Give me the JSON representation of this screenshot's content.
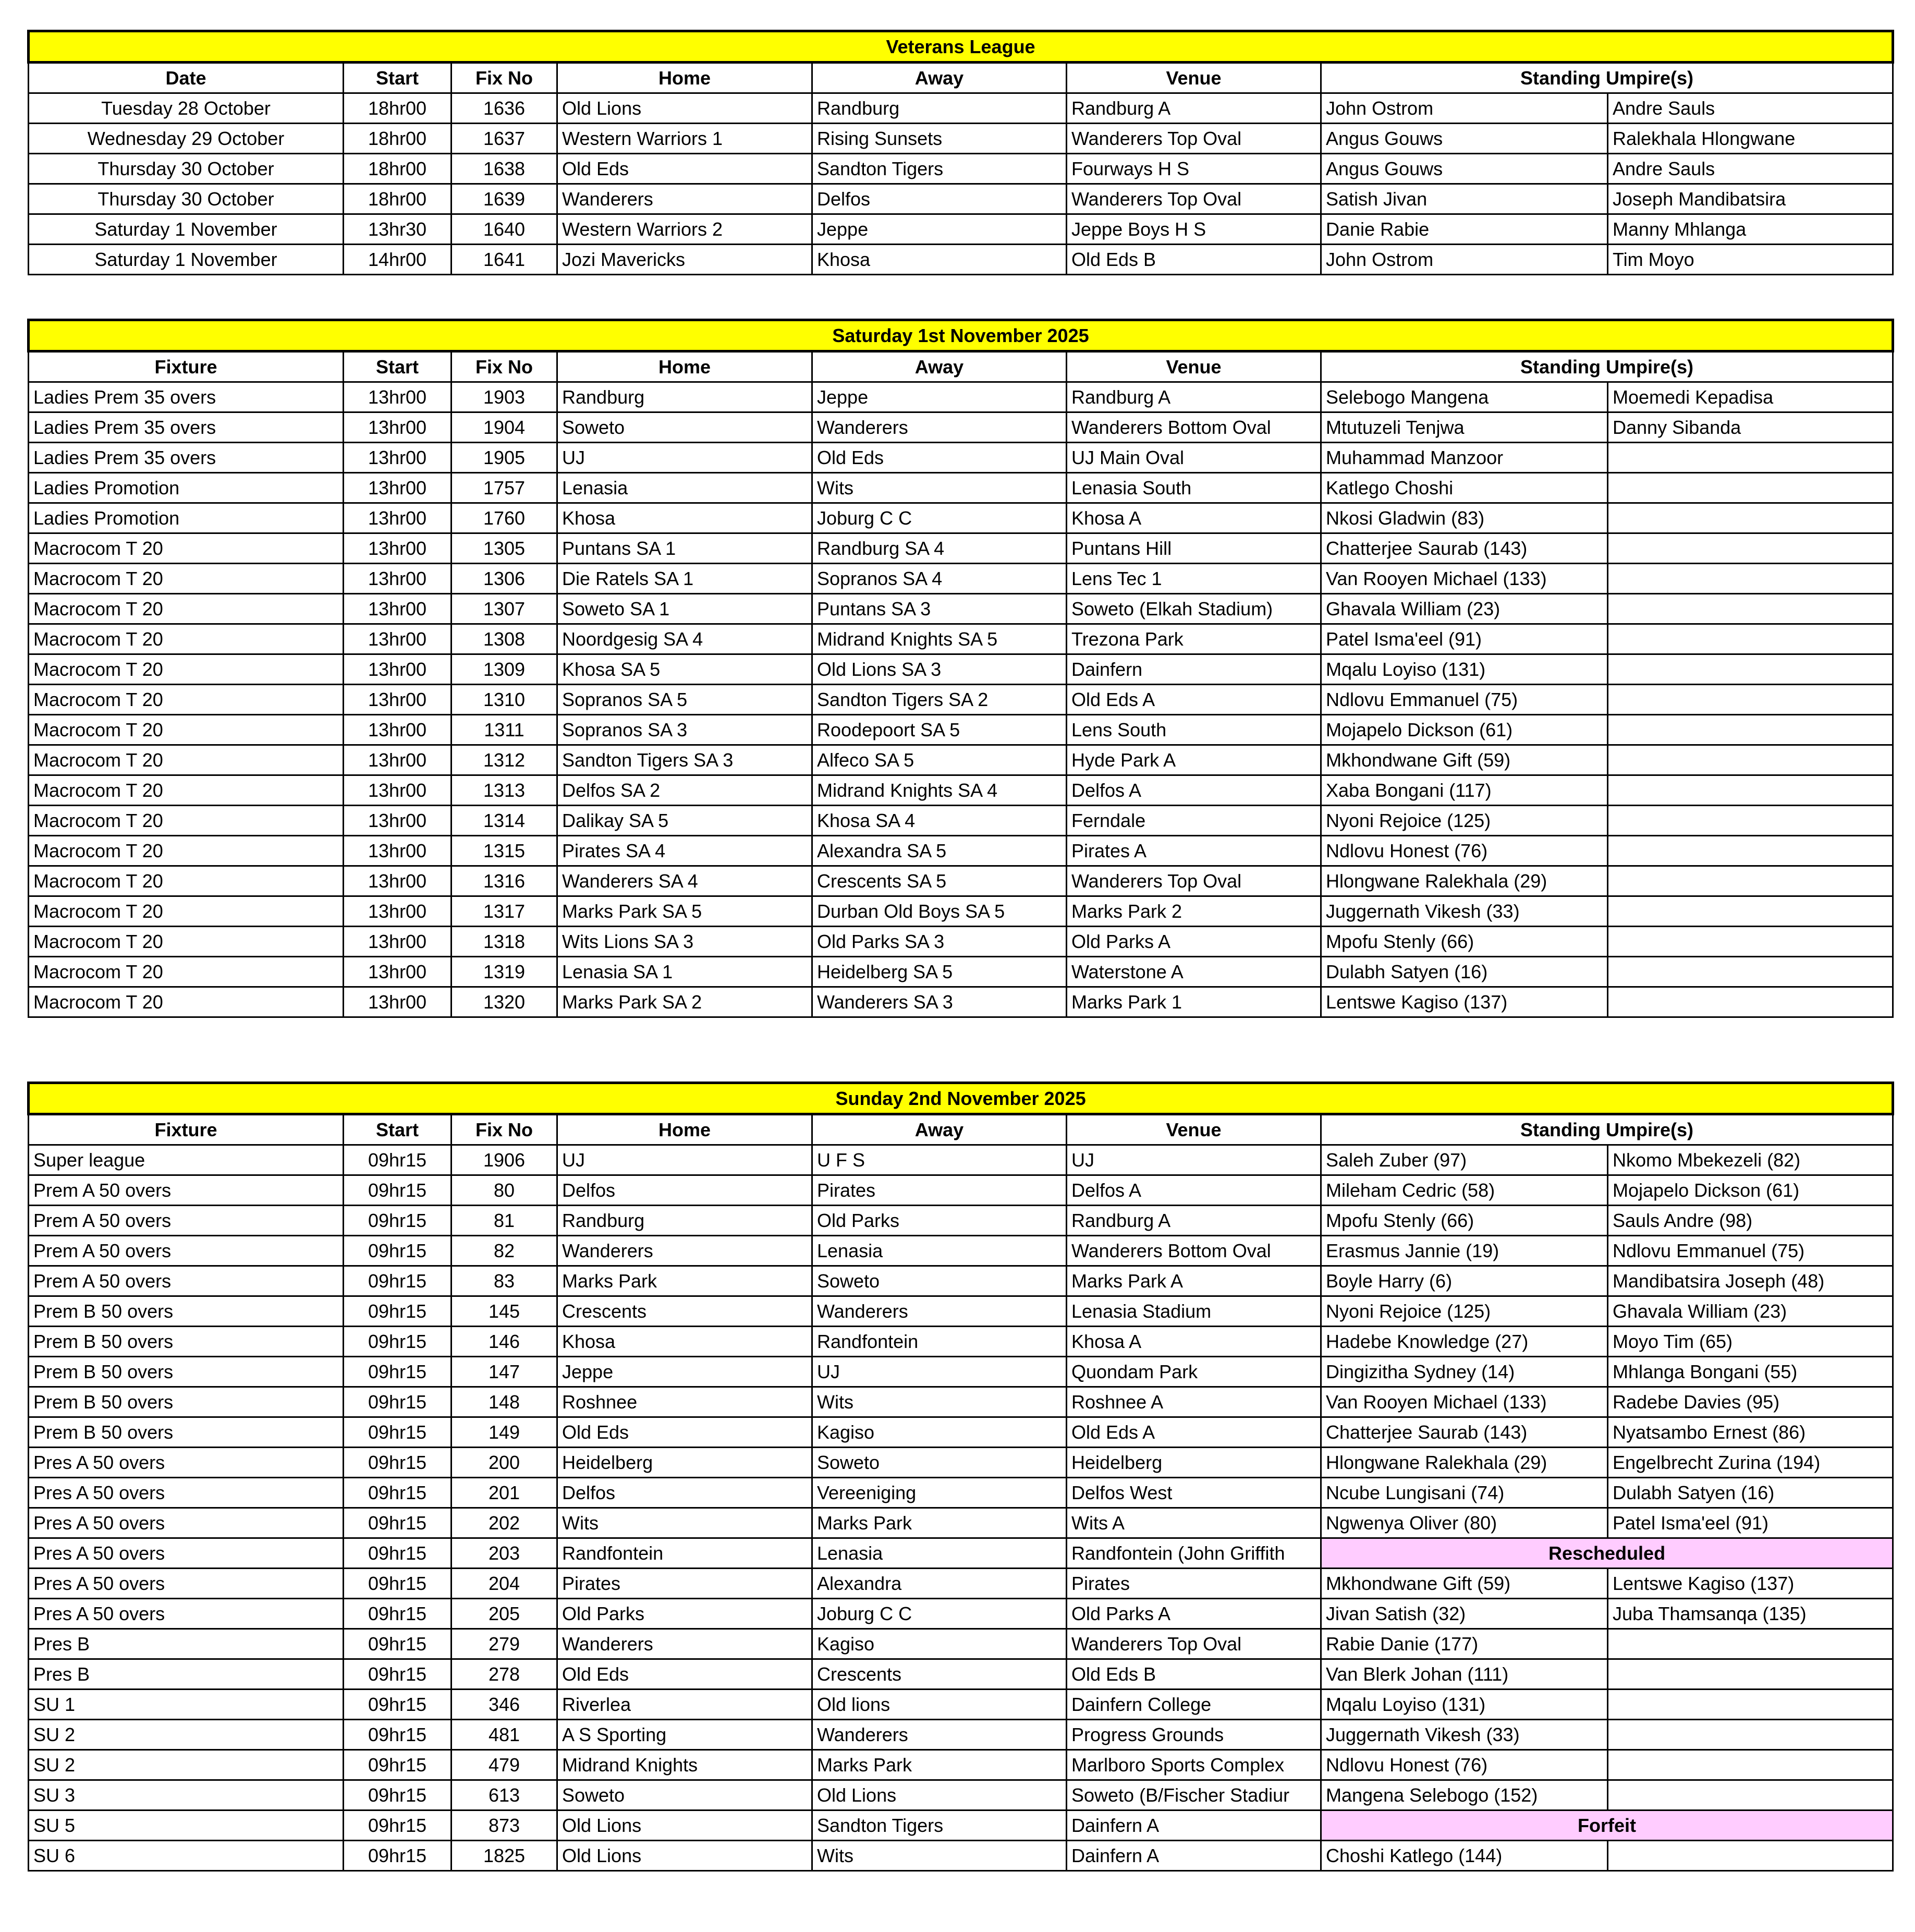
{
  "colors": {
    "title_bg": "#ffff00",
    "notice_bg": "#ffccff"
  },
  "sections": [
    {
      "title": "Veterans League",
      "headers": [
        "Date",
        "Start",
        "Fix No",
        "Home",
        "Away",
        "Venue",
        "Standing Umpire(s)"
      ],
      "rows": [
        {
          "cells": [
            "Tuesday 28 October",
            "18hr00",
            "1636",
            "Old Lions",
            "Randburg",
            "Randburg A",
            "John Ostrom",
            "Andre Sauls"
          ]
        },
        {
          "cells": [
            "Wednesday 29 October",
            "18hr00",
            "1637",
            "Western Warriors 1",
            "Rising Sunsets",
            "Wanderers Top Oval",
            "Angus Gouws",
            "Ralekhala Hlongwane"
          ]
        },
        {
          "cells": [
            "Thursday 30 October",
            "18hr00",
            "1638",
            "Old Eds",
            "Sandton Tigers",
            "Fourways H S",
            "Angus Gouws",
            "Andre Sauls"
          ]
        },
        {
          "cells": [
            "Thursday 30 October",
            "18hr00",
            "1639",
            "Wanderers",
            "Delfos",
            "Wanderers Top Oval",
            "Satish Jivan",
            "Joseph Mandibatsira"
          ]
        },
        {
          "cells": [
            "Saturday 1 November",
            "13hr30",
            "1640",
            "Western Warriors 2",
            "Jeppe",
            "Jeppe Boys H S",
            "Danie Rabie",
            "Manny Mhlanga"
          ]
        },
        {
          "cells": [
            "Saturday 1 November",
            "14hr00",
            "1641",
            "Jozi Mavericks",
            "Khosa",
            "Old Eds B",
            "John Ostrom",
            "Tim Moyo"
          ]
        }
      ]
    },
    {
      "title": "Saturday 1st November 2025",
      "headers": [
        "Fixture",
        "Start",
        "Fix No",
        "Home",
        "Away",
        "Venue",
        "Standing Umpire(s)"
      ],
      "rows": [
        {
          "cells": [
            "Ladies Prem 35 overs",
            "13hr00",
            "1903",
            "Randburg",
            "Jeppe",
            "Randburg A",
            "Selebogo Mangena",
            "Moemedi Kepadisa"
          ]
        },
        {
          "cells": [
            "Ladies Prem 35 overs",
            "13hr00",
            "1904",
            "Soweto",
            "Wanderers",
            "Wanderers Bottom Oval",
            "Mtutuzeli Tenjwa",
            "Danny Sibanda"
          ]
        },
        {
          "cells": [
            "Ladies Prem 35 overs",
            "13hr00",
            "1905",
            "UJ",
            "Old Eds",
            "UJ Main Oval",
            "Muhammad Manzoor",
            ""
          ]
        },
        {
          "cells": [
            "Ladies Promotion",
            "13hr00",
            "1757",
            "Lenasia",
            "Wits",
            "Lenasia South",
            "Katlego Choshi",
            ""
          ]
        },
        {
          "cells": [
            "Ladies Promotion",
            "13hr00",
            "1760",
            "Khosa",
            "Joburg C C",
            "Khosa A",
            "Nkosi Gladwin (83)",
            ""
          ]
        },
        {
          "cells": [
            "Macrocom T 20",
            "13hr00",
            "1305",
            "Puntans SA 1",
            "Randburg SA 4",
            "Puntans Hill",
            "Chatterjee Saurab (143)",
            ""
          ]
        },
        {
          "cells": [
            "Macrocom T 20",
            "13hr00",
            "1306",
            "Die Ratels SA 1",
            "Sopranos SA 4",
            "Lens Tec 1",
            "Van Rooyen Michael (133)",
            ""
          ]
        },
        {
          "cells": [
            "Macrocom T 20",
            "13hr00",
            "1307",
            "Soweto SA 1",
            "Puntans SA 3",
            "Soweto (Elkah Stadium)",
            "Ghavala William (23)",
            ""
          ]
        },
        {
          "cells": [
            "Macrocom T 20",
            "13hr00",
            "1308",
            "Noordgesig SA 4",
            "Midrand Knights SA 5",
            "Trezona Park",
            "Patel Isma'eel (91)",
            ""
          ]
        },
        {
          "cells": [
            "Macrocom T 20",
            "13hr00",
            "1309",
            "Khosa SA 5",
            "Old Lions SA 3",
            "Dainfern",
            "Mqalu Loyiso (131)",
            ""
          ]
        },
        {
          "cells": [
            "Macrocom T 20",
            "13hr00",
            "1310",
            "Sopranos SA 5",
            "Sandton Tigers SA 2",
            "Old Eds A",
            "Ndlovu Emmanuel (75)",
            ""
          ]
        },
        {
          "cells": [
            "Macrocom T 20",
            "13hr00",
            "1311",
            "Sopranos SA 3",
            "Roodepoort SA 5",
            "Lens South",
            "Mojapelo Dickson (61)",
            ""
          ]
        },
        {
          "cells": [
            "Macrocom T 20",
            "13hr00",
            "1312",
            "Sandton Tigers SA 3",
            "Alfeco SA 5",
            "Hyde Park A",
            "Mkhondwane Gift (59)",
            ""
          ]
        },
        {
          "cells": [
            "Macrocom T 20",
            "13hr00",
            "1313",
            "Delfos SA 2",
            "Midrand Knights SA 4",
            "Delfos A",
            "Xaba Bongani (117)",
            ""
          ]
        },
        {
          "cells": [
            "Macrocom T 20",
            "13hr00",
            "1314",
            "Dalikay SA 5",
            "Khosa SA 4",
            "Ferndale",
            "Nyoni Rejoice (125)",
            ""
          ]
        },
        {
          "cells": [
            "Macrocom T 20",
            "13hr00",
            "1315",
            "Pirates SA 4",
            "Alexandra SA 5",
            "Pirates A",
            "Ndlovu Honest (76)",
            ""
          ]
        },
        {
          "cells": [
            "Macrocom T 20",
            "13hr00",
            "1316",
            "Wanderers SA 4",
            "Crescents SA 5",
            "Wanderers Top Oval",
            "Hlongwane Ralekhala (29)",
            ""
          ]
        },
        {
          "cells": [
            "Macrocom T 20",
            "13hr00",
            "1317",
            "Marks Park SA 5",
            "Durban Old Boys SA 5",
            "Marks Park 2",
            "Juggernath Vikesh (33)",
            ""
          ]
        },
        {
          "cells": [
            "Macrocom T 20",
            "13hr00",
            "1318",
            "Wits Lions SA 3",
            "Old Parks SA 3",
            "Old Parks A",
            "Mpofu Stenly (66)",
            ""
          ]
        },
        {
          "cells": [
            "Macrocom T 20",
            "13hr00",
            "1319",
            "Lenasia SA 1",
            "Heidelberg SA 5",
            "Waterstone A",
            "Dulabh Satyen (16)",
            ""
          ]
        },
        {
          "cells": [
            "Macrocom T 20",
            "13hr00",
            "1320",
            "Marks Park SA 2",
            "Wanderers SA 3",
            "Marks Park 1",
            "Lentswe Kagiso (137)",
            ""
          ]
        }
      ]
    },
    {
      "title": "Sunday 2nd November 2025",
      "headers": [
        "Fixture",
        "Start",
        "Fix No",
        "Home",
        "Away",
        "Venue",
        "Standing Umpire(s)"
      ],
      "rows": [
        {
          "cells": [
            "Super league",
            "09hr15",
            "1906",
            "UJ",
            "U F S",
            "UJ",
            "Saleh Zuber (97)",
            "Nkomo Mbekezeli (82)"
          ]
        },
        {
          "cells": [
            "Prem A 50 overs",
            "09hr15",
            "80",
            "Delfos",
            "Pirates",
            "Delfos A",
            "Mileham Cedric (58)",
            "Mojapelo Dickson (61)"
          ]
        },
        {
          "cells": [
            "Prem A 50 overs",
            "09hr15",
            "81",
            "Randburg",
            "Old Parks",
            "Randburg A",
            "Mpofu Stenly (66)",
            "Sauls Andre (98)"
          ]
        },
        {
          "cells": [
            "Prem A 50 overs",
            "09hr15",
            "82",
            "Wanderers",
            "Lenasia",
            "Wanderers Bottom Oval",
            "Erasmus Jannie (19)",
            "Ndlovu Emmanuel (75)"
          ]
        },
        {
          "cells": [
            "Prem A 50 overs",
            "09hr15",
            "83",
            "Marks Park",
            "Soweto",
            "Marks Park A",
            "Boyle Harry (6)",
            "Mandibatsira Joseph (48)"
          ]
        },
        {
          "cells": [
            "Prem B 50 overs",
            "09hr15",
            "145",
            "Crescents",
            "Wanderers",
            "Lenasia Stadium",
            "Nyoni Rejoice (125)",
            "Ghavala William (23)"
          ]
        },
        {
          "cells": [
            "Prem B 50 overs",
            "09hr15",
            "146",
            "Khosa",
            "Randfontein",
            "Khosa A",
            "Hadebe Knowledge (27)",
            "Moyo Tim (65)"
          ]
        },
        {
          "cells": [
            "Prem B 50 overs",
            "09hr15",
            "147",
            "Jeppe",
            "UJ",
            "Quondam Park",
            "Dingizitha Sydney (14)",
            "Mhlanga Bongani (55)"
          ]
        },
        {
          "cells": [
            "Prem B 50 overs",
            "09hr15",
            "148",
            "Roshnee",
            "Wits",
            "Roshnee A",
            "Van Rooyen Michael (133)",
            "Radebe Davies (95)"
          ]
        },
        {
          "cells": [
            "Prem B 50 overs",
            "09hr15",
            "149",
            "Old Eds",
            "Kagiso",
            "Old Eds A",
            "Chatterjee Saurab (143)",
            "Nyatsambo Ernest (86)"
          ]
        },
        {
          "cells": [
            "Pres A 50 overs",
            "09hr15",
            "200",
            "Heidelberg",
            "Soweto",
            "Heidelberg",
            "Hlongwane Ralekhala (29)",
            "Engelbrecht Zurina (194)"
          ]
        },
        {
          "cells": [
            "Pres A 50 overs",
            "09hr15",
            "201",
            "Delfos",
            "Vereeniging",
            "Delfos West",
            "Ncube Lungisani (74)",
            "Dulabh Satyen (16)"
          ]
        },
        {
          "cells": [
            "Pres A 50 overs",
            "09hr15",
            "202",
            "Wits",
            "Marks Park",
            "Wits A",
            "Ngwenya Oliver (80)",
            "Patel Isma'eel (91)"
          ]
        },
        {
          "cells": [
            "Pres A 50 overs",
            "09hr15",
            "203",
            "Randfontein",
            "Lenasia",
            "Randfontein (John Griffith"
          ],
          "notice": "Rescheduled"
        },
        {
          "cells": [
            "Pres A 50 overs",
            "09hr15",
            "204",
            "Pirates",
            "Alexandra",
            "Pirates",
            "Mkhondwane Gift (59)",
            "Lentswe Kagiso (137)"
          ]
        },
        {
          "cells": [
            "Pres A 50 overs",
            "09hr15",
            "205",
            "Old Parks",
            "Joburg C C",
            "Old Parks A",
            "Jivan Satish (32)",
            "Juba Thamsanqa (135)"
          ]
        },
        {
          "cells": [
            "Pres B",
            "09hr15",
            "279",
            "Wanderers",
            "Kagiso",
            "Wanderers Top Oval",
            "Rabie Danie (177)",
            ""
          ]
        },
        {
          "cells": [
            "Pres B",
            "09hr15",
            "278",
            "Old Eds",
            "Crescents",
            "Old Eds B",
            "Van Blerk Johan (111)",
            ""
          ]
        },
        {
          "cells": [
            "SU 1",
            "09hr15",
            "346",
            "Riverlea",
            "Old lions",
            "Dainfern College",
            "Mqalu Loyiso (131)",
            ""
          ]
        },
        {
          "cells": [
            "SU 2",
            "09hr15",
            "481",
            "A S Sporting",
            "Wanderers",
            "Progress Grounds",
            "Juggernath Vikesh (33)",
            ""
          ]
        },
        {
          "cells": [
            "SU 2",
            "09hr15",
            "479",
            "Midrand Knights",
            "Marks Park",
            "Marlboro Sports Complex",
            "Ndlovu Honest (76)",
            ""
          ]
        },
        {
          "cells": [
            "SU 3",
            "09hr15",
            "613",
            "Soweto",
            "Old Lions",
            "Soweto (B/Fischer Stadiur",
            "Mangena Selebogo (152)",
            ""
          ]
        },
        {
          "cells": [
            "SU 5",
            "09hr15",
            "873",
            "Old Lions",
            "Sandton Tigers",
            "Dainfern A"
          ],
          "notice": "Forfeit"
        },
        {
          "cells": [
            "SU 6",
            "09hr15",
            "1825",
            "Old Lions",
            "Wits",
            "Dainfern A",
            "Choshi Katlego (144)",
            ""
          ]
        }
      ]
    }
  ]
}
